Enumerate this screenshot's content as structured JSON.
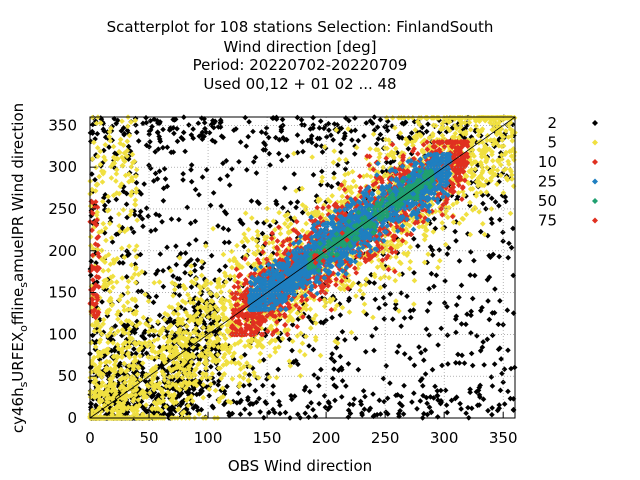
{
  "chart_data": {
    "type": "scatter",
    "title": [
      "Scatterplot for  108 stations Selection: FinlandSouth",
      "Wind direction [deg]",
      "Period: 20220702-20220709",
      "Used  00,12  + 01 02 ... 48"
    ],
    "xlabel": "OBS Wind direction",
    "ylabel": "cy46h_sURFEX_offline_samuelPR Wind direction",
    "ylabel_parts": [
      {
        "text": "cy46h",
        "shift": "base"
      },
      {
        "text": "s",
        "shift": "sub"
      },
      {
        "text": "URFEX",
        "shift": "base"
      },
      {
        "text": "o",
        "shift": "sub"
      },
      {
        "text": "ffline",
        "shift": "base"
      },
      {
        "text": "s",
        "shift": "sub"
      },
      {
        "text": "amuelPR Wind direction",
        "shift": "base"
      }
    ],
    "xlim": [
      0,
      360
    ],
    "ylim": [
      0,
      360
    ],
    "xticks": [
      "0",
      "50",
      "100",
      "150",
      "200",
      "250",
      "300",
      "350"
    ],
    "yticks": [
      "0",
      "50",
      "100",
      "150",
      "200",
      "250",
      "300",
      "350"
    ],
    "grid": true,
    "diagonal_line": {
      "from": [
        0,
        0
      ],
      "to": [
        360,
        360
      ]
    },
    "legend_placement": "right",
    "series": [
      {
        "name": "2",
        "color": "#000000",
        "band": "scattered points over entire range"
      },
      {
        "name": "5",
        "color": "#f0e040",
        "band": "broad band around diagonal, ±~80 deg"
      },
      {
        "name": "10",
        "color": "#e03020",
        "band": "band around diagonal, ±~45 deg"
      },
      {
        "name": "25",
        "color": "#1f7fc0",
        "band": "core band x~140-310, ±~35 deg"
      },
      {
        "name": "50",
        "color": "#20a070",
        "band": "inner core x~180-290, ±~15 deg"
      },
      {
        "name": "75",
        "color": "#e03020",
        "band": "small cluster near x~180-220"
      }
    ]
  }
}
